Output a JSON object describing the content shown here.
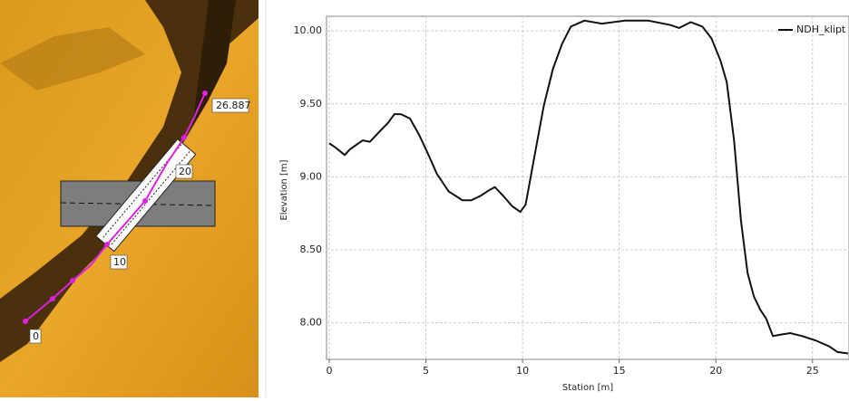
{
  "map": {
    "labels": [
      "26.887",
      "20",
      "10",
      "0"
    ]
  },
  "chart_data": {
    "type": "line",
    "xlabel": "Station [m]",
    "ylabel": "Elevation [m]",
    "xlim": [
      0,
      26.887
    ],
    "ylim": [
      7.75,
      10.1
    ],
    "xticks": [
      0,
      5,
      10,
      15,
      20,
      25
    ],
    "yticks": [
      {
        "value": 8,
        "label": "8.00"
      },
      {
        "value": 8.5,
        "label": "8.50"
      },
      {
        "value": 9,
        "label": "9.00"
      },
      {
        "value": 9.5,
        "label": "9.50"
      },
      {
        "value": 10,
        "label": "10.00"
      }
    ],
    "grid": true,
    "legend": "top-right",
    "series": [
      {
        "name": "NDH_klipt",
        "color": "#111111",
        "x": [
          0,
          0.33,
          0.8,
          1.08,
          1.73,
          2.1,
          2.67,
          3.04,
          3.37,
          3.7,
          4.17,
          4.64,
          5.1,
          5.57,
          6.18,
          6.89,
          7.35,
          7.82,
          8.29,
          8.57,
          9.0,
          9.46,
          9.88,
          10.16,
          10.6,
          11.1,
          11.57,
          12.04,
          12.5,
          13.2,
          14.1,
          15.3,
          16.5,
          17.66,
          18.1,
          18.7,
          19.3,
          19.77,
          20.23,
          20.56,
          20.94,
          21.3,
          21.64,
          21.97,
          22.3,
          22.6,
          22.95,
          23.37,
          23.84,
          24.45,
          25.15,
          25.85,
          26.3,
          26.84
        ],
        "values": [
          9.23,
          9.2,
          9.15,
          9.19,
          9.25,
          9.24,
          9.32,
          9.37,
          9.43,
          9.43,
          9.4,
          9.29,
          9.16,
          9.02,
          8.9,
          8.84,
          8.84,
          8.87,
          8.91,
          8.93,
          8.87,
          8.8,
          8.76,
          8.81,
          9.13,
          9.49,
          9.74,
          9.91,
          10.03,
          10.07,
          10.05,
          10.07,
          10.07,
          10.04,
          10.02,
          10.06,
          10.03,
          9.95,
          9.8,
          9.65,
          9.25,
          8.7,
          8.34,
          8.18,
          8.09,
          8.03,
          7.91,
          7.92,
          7.93,
          7.91,
          7.88,
          7.84,
          7.8,
          7.79
        ]
      }
    ]
  }
}
